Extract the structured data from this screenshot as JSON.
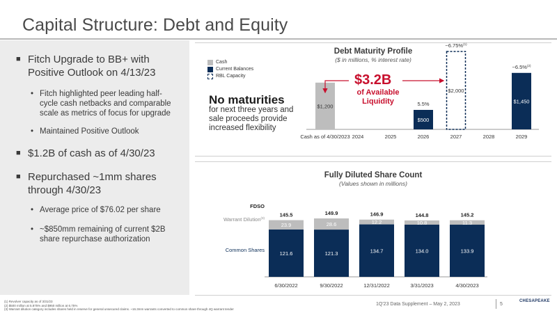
{
  "page": {
    "title": "Capital Structure: Debt and Equity"
  },
  "left": {
    "b1": "Fitch Upgrade to BB+ with Positive Outlook on 4/13/23",
    "b1_s1": "Fitch highlighted peer leading half-cycle cash netbacks and comparable scale as metrics of focus for upgrade",
    "b1_s2": "Maintained Positive Outlook",
    "b2": "$1.2B of cash as of 4/30/23",
    "b3": "Repurchased ~1mm shares through 4/30/23",
    "b3_s1": "Average price of $76.02 per share",
    "b3_s2": "~$850mm remaining of current $2B share repurchase authorization"
  },
  "debt": {
    "no_maturities_title": "No maturities",
    "no_maturities_text": "for next three years and sale proceeds provide increased flexibility",
    "big_value": "$3.2B",
    "big_value_sub": "of Available Liquidity"
  },
  "colors": {
    "navy": "#0b2d57",
    "gray": "#bdbdbd",
    "red": "#c8102e",
    "panel": "#ececec"
  },
  "chart_data": [
    {
      "type": "bar",
      "title": "Debt Maturity Profile",
      "subtitle": "($ in millions, % interest rate)",
      "legend": [
        "Cash",
        "Current Balances",
        "RBL Capacity"
      ],
      "categories": [
        "Cash as of 4/30/2023",
        "2024",
        "2025",
        "2026",
        "2027",
        "2028",
        "2029"
      ],
      "series": [
        {
          "name": "Cash",
          "values": [
            1200,
            0,
            0,
            0,
            0,
            0,
            0
          ],
          "labels": [
            "$1,200",
            "",
            "",
            "",
            "",
            "",
            ""
          ]
        },
        {
          "name": "Current Balances",
          "values": [
            0,
            0,
            0,
            500,
            0,
            0,
            1450
          ],
          "labels": [
            "",
            "",
            "",
            "$500",
            "",
            "",
            "$1,450"
          ]
        },
        {
          "name": "RBL Capacity",
          "values": [
            0,
            0,
            0,
            0,
            2000,
            0,
            0
          ],
          "labels": [
            "",
            "",
            "",
            "",
            "$2,000",
            "",
            ""
          ]
        }
      ],
      "rates": [
        "",
        "",
        "",
        "5.5%",
        "~6.75%",
        "",
        "~6.5%"
      ],
      "rate_sup": [
        "",
        "",
        "",
        "",
        "(1)",
        "",
        "(2)"
      ],
      "ylim": [
        0,
        2000
      ]
    },
    {
      "type": "bar",
      "title": "Fully Diluted Share Count",
      "subtitle": "(Values shown in millions)",
      "categories": [
        "6/30/2022",
        "9/30/2022",
        "12/31/2022",
        "3/31/2023",
        "4/30/2023"
      ],
      "row_labels": {
        "total": "FDSO",
        "warrant": "Warrant Dilution",
        "warrant_sup": "(3)",
        "common": "Common Shares"
      },
      "series": [
        {
          "name": "Common Shares",
          "values": [
            121.6,
            121.3,
            134.7,
            134.0,
            133.9
          ]
        },
        {
          "name": "Warrant Dilution",
          "values": [
            23.9,
            28.6,
            12.2,
            10.8,
            11.3
          ]
        }
      ],
      "totals": [
        145.5,
        149.9,
        146.9,
        144.8,
        145.2
      ]
    }
  ],
  "footnotes": {
    "n1": "(1)      Revolver capacity as of 3/31/23",
    "n2": "(2)      $500 million at 5.875% and $950 million at 6.75%",
    "n3": "(3)      Warrant dilution category includes shares held in reserve for general unsecured claims. ~16.3mm warrants converted to common share through 4Q warrant tender"
  },
  "footer": {
    "text": "1Q'23 Data Supplement – May 2, 2023",
    "page": "5",
    "logo": "CHESAPEAKE"
  }
}
